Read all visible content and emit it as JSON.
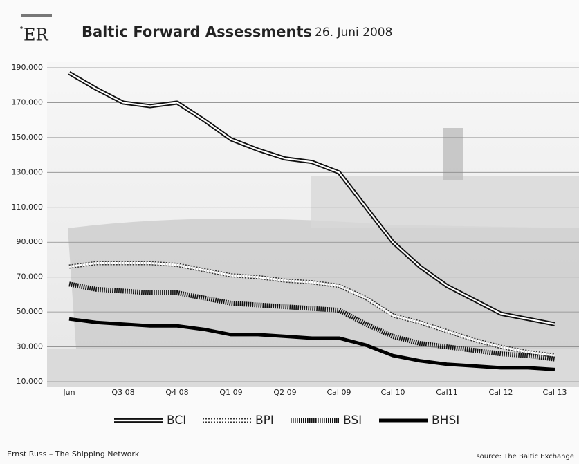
{
  "chart_data": {
    "type": "line",
    "logo": "ER",
    "title": "Baltic Forward Assessments",
    "subtitle": "26. Juni 2008",
    "footer_left": "Ernst Russ – The Shipping Network",
    "footer_right": "source: The Baltic Exchange",
    "categories": [
      "Jun",
      null,
      "Q3 08",
      null,
      "Q4 08",
      null,
      "Q1 09",
      null,
      "Q2 09",
      null,
      "Cal 09",
      null,
      "Cal 10",
      null,
      "Cal11",
      null,
      "Cal 12",
      null,
      "Cal 13"
    ],
    "ylim": [
      10000,
      190000
    ],
    "yticks": [
      {
        "value": 10000,
        "label": "10.000"
      },
      {
        "value": 30000,
        "label": "30.000"
      },
      {
        "value": 50000,
        "label": "50.000"
      },
      {
        "value": 70000,
        "label": "70.000"
      },
      {
        "value": 90000,
        "label": "90.000"
      },
      {
        "value": 110000,
        "label": "110.000"
      },
      {
        "value": 130000,
        "label": "130.000"
      },
      {
        "value": 150000,
        "label": "150.000"
      },
      {
        "value": 170000,
        "label": "170.000"
      },
      {
        "value": 190000,
        "label": "190.000"
      }
    ],
    "grid": true,
    "series": [
      {
        "name": "BCI",
        "color": "#111111",
        "style": "double",
        "values": [
          187000,
          178000,
          170000,
          168000,
          170000,
          160000,
          149000,
          143000,
          138000,
          136000,
          130000,
          110000,
          90000,
          76000,
          65000,
          57000,
          49000,
          46000,
          43000
        ]
      },
      {
        "name": "BPI",
        "color": "#333333",
        "style": "chain",
        "values": [
          76000,
          78000,
          78000,
          78000,
          77000,
          74000,
          71000,
          70000,
          68000,
          67000,
          65000,
          58000,
          48000,
          44000,
          39000,
          34000,
          30000,
          27000,
          25000
        ]
      },
      {
        "name": "BSI",
        "color": "#111111",
        "style": "hatched",
        "values": [
          66000,
          63000,
          62000,
          61000,
          61000,
          58000,
          55000,
          54000,
          53000,
          52000,
          51000,
          43000,
          36000,
          32000,
          30000,
          28000,
          26000,
          25000,
          23000
        ]
      },
      {
        "name": "BHSI",
        "color": "#000000",
        "style": "solid",
        "values": [
          46000,
          44000,
          43000,
          42000,
          42000,
          40000,
          37000,
          37000,
          36000,
          35000,
          35000,
          31000,
          25000,
          22000,
          20000,
          19000,
          18000,
          18000,
          17000
        ]
      }
    ]
  }
}
